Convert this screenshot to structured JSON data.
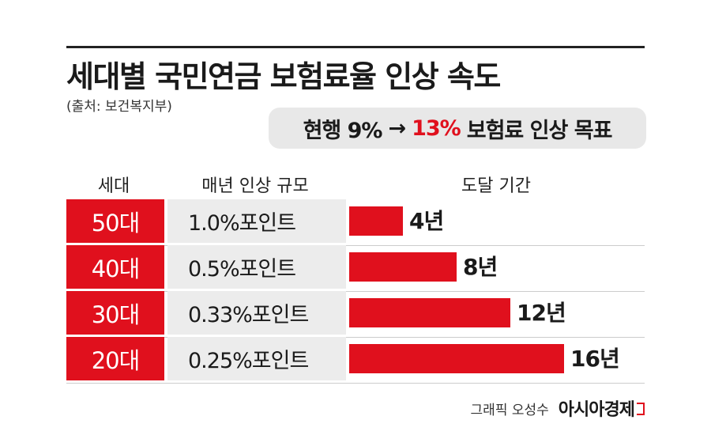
{
  "title": "세대별 국민연금 보험료율 인상 속도",
  "source": "(출처: 보건복지부)",
  "target": {
    "current": "현행 9%",
    "arrow": "→",
    "goal": "13%",
    "suffix": "보험료 인상 목표"
  },
  "headers": {
    "generation": "세대",
    "rate": "매년 인상 규모",
    "period": "도달 기간"
  },
  "credit": {
    "text": "그래픽 오성수",
    "logo": "아시아경제"
  },
  "colors": {
    "accent": "#e0101d",
    "rate_bg": "#ececec"
  },
  "chart_data": {
    "type": "bar",
    "orientation": "horizontal",
    "categories": [
      "50대",
      "40대",
      "30대",
      "20대"
    ],
    "annual_increase": [
      "1.0%포인트",
      "0.5%포인트",
      "0.33%포인트",
      "0.25%포인트"
    ],
    "values": [
      4,
      8,
      12,
      16
    ],
    "value_labels": [
      "4년",
      "8년",
      "12년",
      "16년"
    ],
    "xlim": [
      0,
      22
    ]
  }
}
